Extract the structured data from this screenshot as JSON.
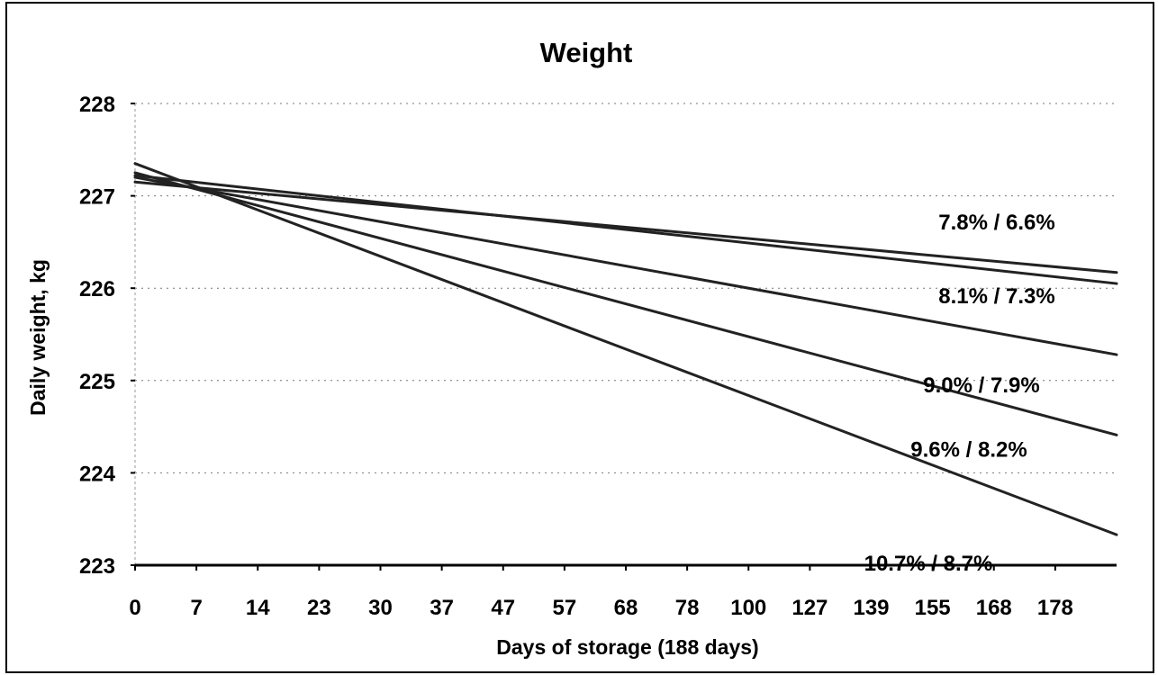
{
  "chart_data": {
    "type": "line",
    "title": "Weight",
    "xlabel": "Days of storage (188 days)",
    "ylabel": "Daily weight, kg",
    "x_tick_labels": [
      "0",
      "7",
      "14",
      "23",
      "30",
      "37",
      "47",
      "57",
      "68",
      "78",
      "100",
      "127",
      "139",
      "155",
      "168",
      "178"
    ],
    "y_tick_labels": [
      "223",
      "224",
      "225",
      "226",
      "227",
      "228"
    ],
    "ylim": [
      223,
      228
    ],
    "grid": "dotted horizontal",
    "series": [
      {
        "name": "7.8% / 6.6%",
        "start": 227.15,
        "end": 226.17
      },
      {
        "name": "8.1% / 7.3%",
        "start": 227.22,
        "end": 226.05
      },
      {
        "name": "9.0% / 7.9%",
        "start": 227.2,
        "end": 225.28
      },
      {
        "name": "9.6% / 8.2%",
        "start": 227.25,
        "end": 224.41
      },
      {
        "name": "10.7% / 8.7%",
        "start": 227.35,
        "end": 223.33
      }
    ],
    "line_color": "#222222"
  }
}
